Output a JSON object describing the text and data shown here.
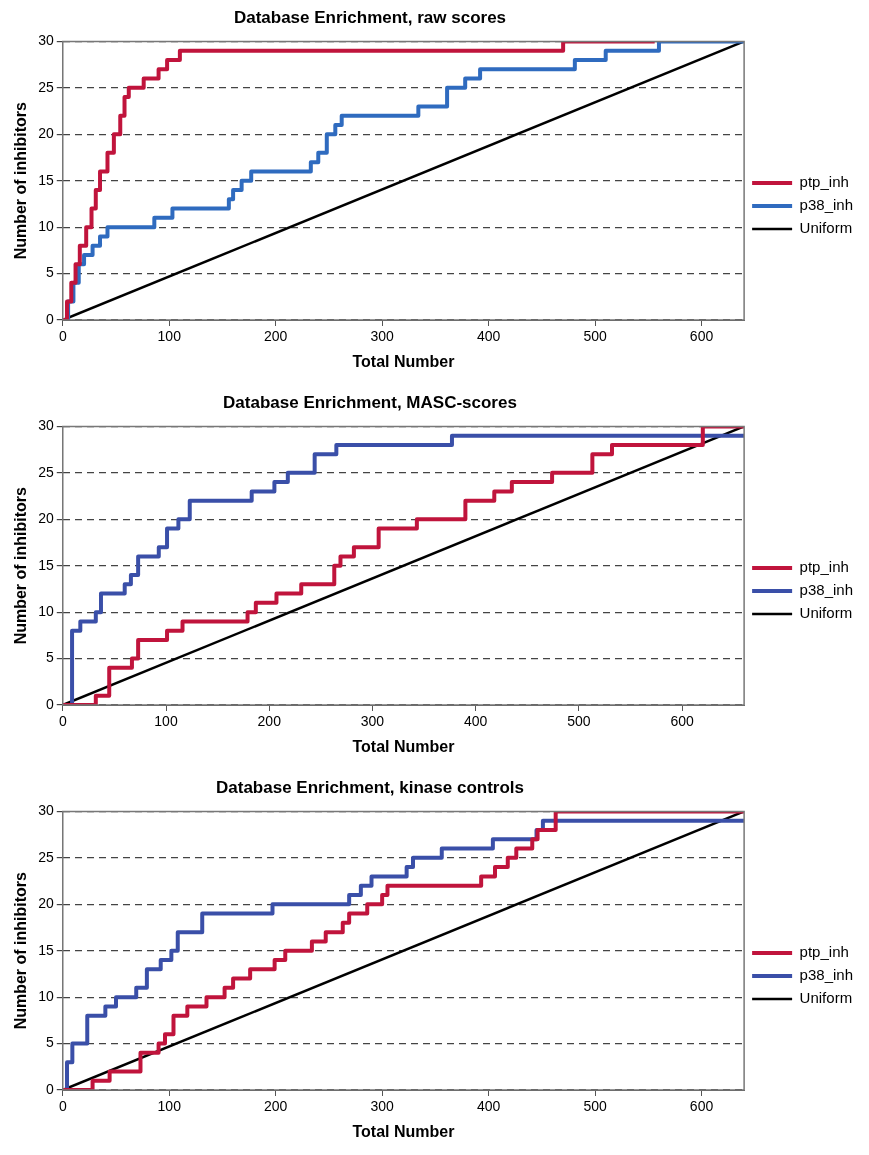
{
  "chart_data": [
    {
      "type": "step",
      "title": "Database Enrichment, raw scores",
      "xlabel": "Total Number",
      "ylabel": "Number of inhibitors",
      "xlim": [
        0,
        640
      ],
      "ylim": [
        0,
        30
      ],
      "xticks": [
        0,
        100,
        200,
        300,
        400,
        500,
        600
      ],
      "yticks": [
        0,
        5,
        10,
        15,
        20,
        25,
        30
      ],
      "grid": "y",
      "legend": "right",
      "marker": "none",
      "series": [
        {
          "name": "ptp_inh",
          "color": "#c0143c",
          "x": [
            0,
            4,
            8,
            12,
            16,
            22,
            27,
            31,
            35,
            42,
            48,
            54,
            58,
            62,
            76,
            90,
            98,
            110,
            470,
            556
          ],
          "values": [
            0,
            2,
            4,
            6,
            8,
            10,
            12,
            14,
            16,
            18,
            20,
            22,
            24,
            25,
            26,
            27,
            28,
            29,
            30,
            30
          ]
        },
        {
          "name": "p38_inh",
          "color": "#2f6bbf",
          "x": [
            0,
            5,
            10,
            15,
            20,
            28,
            35,
            42,
            86,
            103,
            156,
            160,
            168,
            177,
            233,
            240,
            248,
            256,
            262,
            334,
            361,
            378,
            392,
            481,
            510,
            560,
            640
          ],
          "values": [
            0,
            2,
            4,
            6,
            7,
            8,
            9,
            10,
            11,
            12,
            13,
            14,
            15,
            16,
            17,
            18,
            20,
            21,
            22,
            23,
            25,
            26,
            27,
            28,
            29,
            30,
            30
          ]
        },
        {
          "name": "Uniform",
          "type": "line",
          "color": "#000000",
          "x": [
            0,
            640
          ],
          "values": [
            0,
            30
          ]
        }
      ]
    },
    {
      "type": "step",
      "title": "Database Enrichment, MASC-scores",
      "xlabel": "Total Number",
      "ylabel": "Number of inhibitors",
      "xlim": [
        0,
        660
      ],
      "ylim": [
        0,
        30
      ],
      "xticks": [
        0,
        100,
        200,
        300,
        400,
        500,
        600
      ],
      "yticks": [
        0,
        5,
        10,
        15,
        20,
        25,
        30
      ],
      "grid": "y",
      "legend": "right",
      "marker": "none",
      "series": [
        {
          "name": "ptp_inh",
          "color": "#c0143c",
          "x": [
            0,
            32,
            45,
            67,
            73,
            101,
            116,
            179,
            187,
            207,
            231,
            263,
            269,
            282,
            306,
            343,
            390,
            418,
            435,
            474,
            513,
            532,
            620,
            660
          ],
          "values": [
            0,
            1,
            4,
            5,
            7,
            8,
            9,
            10,
            11,
            12,
            13,
            15,
            16,
            17,
            19,
            20,
            22,
            23,
            24,
            25,
            27,
            28,
            30,
            30
          ]
        },
        {
          "name": "p38_inh",
          "color": "#3a4fa8",
          "x": [
            0,
            9,
            17,
            32,
            37,
            60,
            66,
            73,
            93,
            101,
            112,
            123,
            183,
            205,
            218,
            244,
            265,
            377,
            660
          ],
          "values": [
            0,
            8,
            9,
            10,
            12,
            13,
            14,
            16,
            17,
            19,
            20,
            22,
            23,
            24,
            25,
            27,
            28,
            29,
            29
          ]
        },
        {
          "name": "Uniform",
          "type": "line",
          "color": "#000000",
          "x": [
            0,
            660
          ],
          "values": [
            0,
            30
          ]
        }
      ]
    },
    {
      "type": "step",
      "title": "Database Enrichment, kinase controls",
      "xlabel": "Total Number",
      "ylabel": "Number of inhibitors",
      "xlim": [
        0,
        640
      ],
      "ylim": [
        0,
        30
      ],
      "xticks": [
        0,
        100,
        200,
        300,
        400,
        500,
        600
      ],
      "yticks": [
        0,
        5,
        10,
        15,
        20,
        25,
        30
      ],
      "grid": "y",
      "legend": "right",
      "marker": "none",
      "series": [
        {
          "name": "ptp_inh",
          "color": "#c0143c",
          "x": [
            0,
            28,
            44,
            73,
            90,
            96,
            104,
            117,
            135,
            152,
            160,
            176,
            199,
            209,
            234,
            247,
            263,
            269,
            286,
            300,
            305,
            393,
            406,
            418,
            426,
            441,
            446,
            463,
            640
          ],
          "values": [
            0,
            1,
            2,
            4,
            5,
            6,
            8,
            9,
            10,
            11,
            12,
            13,
            14,
            15,
            16,
            17,
            18,
            19,
            20,
            21,
            22,
            23,
            24,
            25,
            26,
            27,
            28,
            30,
            30
          ]
        },
        {
          "name": "p38_inh",
          "color": "#3a4fa8",
          "x": [
            0,
            4,
            9,
            23,
            40,
            50,
            69,
            79,
            92,
            102,
            108,
            131,
            197,
            269,
            280,
            290,
            323,
            329,
            356,
            404,
            445,
            451,
            640
          ],
          "values": [
            0,
            3,
            5,
            8,
            9,
            10,
            11,
            13,
            14,
            15,
            17,
            19,
            20,
            21,
            22,
            23,
            24,
            25,
            26,
            27,
            28,
            29,
            29
          ]
        },
        {
          "name": "Uniform",
          "type": "line",
          "color": "#000000",
          "x": [
            0,
            640
          ],
          "values": [
            0,
            30
          ]
        }
      ]
    }
  ]
}
